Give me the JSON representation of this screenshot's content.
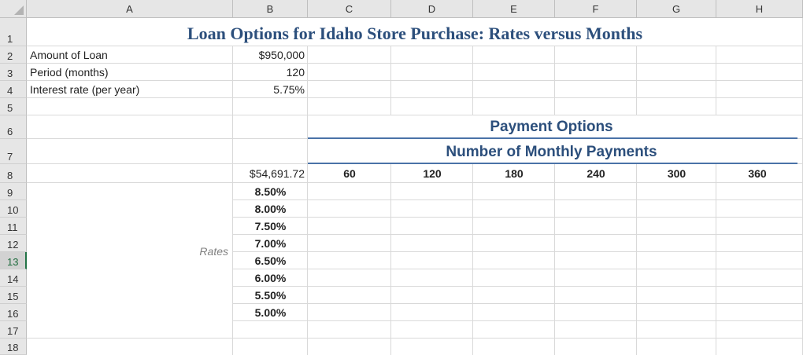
{
  "columns": [
    "A",
    "B",
    "C",
    "D",
    "E",
    "F",
    "G",
    "H"
  ],
  "rows": [
    "1",
    "2",
    "3",
    "4",
    "5",
    "6",
    "7",
    "8",
    "9",
    "10",
    "11",
    "12",
    "13",
    "14",
    "15",
    "16",
    "17",
    "18"
  ],
  "title": "Loan Options for Idaho Store Purchase: Rates versus Months",
  "inputs": [
    {
      "label": "Amount of Loan",
      "value": "$950,000"
    },
    {
      "label": "Period (months)",
      "value": "120"
    },
    {
      "label": "Interest rate (per year)",
      "value": "5.75%"
    }
  ],
  "payment_options_header": "Payment Options",
  "monthly_payments_header": "Number of Monthly Payments",
  "formula_result": "$54,691.72",
  "months": [
    "60",
    "120",
    "180",
    "240",
    "300",
    "360"
  ],
  "rates_label": "Rates",
  "rates": [
    "8.50%",
    "8.00%",
    "7.50%",
    "7.00%",
    "6.50%",
    "6.00%",
    "5.50%",
    "5.00%"
  ],
  "selected_row": "13",
  "colors": {
    "title": "#2c4f7c",
    "rule": "#4a72a8",
    "header_bg": "#e6e6e6",
    "selected_row_accent": "#217346"
  }
}
